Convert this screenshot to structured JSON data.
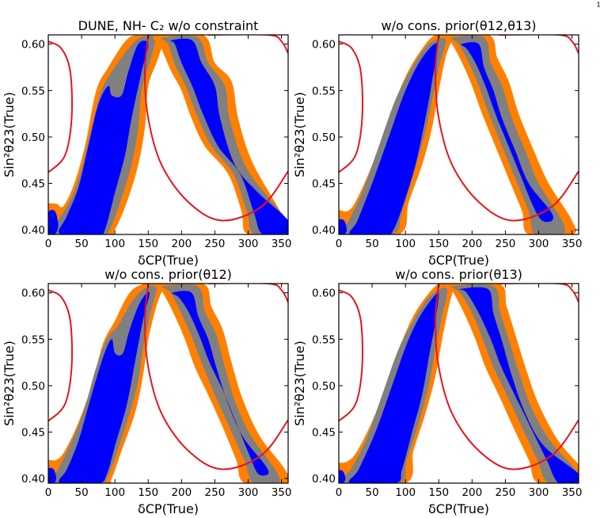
{
  "page_number": "1",
  "colors": {
    "orange": "#ff8000",
    "gray": "#808080",
    "blue": "#0000ff",
    "red": "#e8141b"
  },
  "chart_data": [
    {
      "type": "contour",
      "title": "DUNE, NH- C₂ w/o constraint",
      "xlabel": "δCP(True)",
      "ylabel": "Sin²θ23(True)",
      "xlim": [
        0,
        360
      ],
      "ylim": [
        0.395,
        0.61
      ],
      "x_ticks": [
        0,
        50,
        100,
        150,
        200,
        250,
        300,
        350
      ],
      "y_ticks": [
        0.4,
        0.45,
        0.5,
        0.55,
        0.6
      ],
      "x_tick_labels": [
        "0",
        "50",
        "100",
        "150",
        "200",
        "250",
        "300",
        "350"
      ],
      "y_tick_labels": [
        "0.40",
        "0.45",
        "0.50",
        "0.55",
        "0.60"
      ],
      "regions": {
        "left_band": {
          "x_at_bottom": [
            0,
            30
          ],
          "x_at_top": [
            125,
            155
          ],
          "bulge_x": 115,
          "bulge_y": 0.53
        },
        "right_band": {
          "x_at_top": [
            170,
            225
          ],
          "x_at_bottom": [
            315,
            360
          ],
          "bulge_x": 250,
          "bulge_y": 0.56
        }
      },
      "red_curve": [
        [
          0,
          0.603
        ],
        [
          20,
          0.595
        ],
        [
          33,
          0.57
        ],
        [
          35,
          0.52
        ],
        [
          25,
          0.48
        ],
        [
          0,
          0.462
        ],
        [
          150,
          0.61
        ],
        [
          145,
          0.57
        ],
        [
          150,
          0.52
        ],
        [
          170,
          0.47
        ],
        [
          210,
          0.43
        ],
        [
          260,
          0.41
        ],
        [
          320,
          0.425
        ],
        [
          360,
          0.463
        ],
        [
          240,
          0.61
        ],
        [
          330,
          0.61
        ],
        [
          350,
          0.603
        ],
        [
          360,
          0.59
        ]
      ]
    },
    {
      "type": "contour",
      "title": "w/o cons. prior(θ12,θ13)",
      "xlabel": "δCP(True)",
      "ylabel": "Sin²θ23(True)",
      "xlim": [
        0,
        360
      ],
      "ylim": [
        0.395,
        0.61
      ],
      "x_ticks": [
        0,
        50,
        100,
        150,
        200,
        250,
        300,
        350
      ],
      "y_ticks": [
        0.4,
        0.45,
        0.5,
        0.55,
        0.6
      ],
      "x_tick_labels": [
        "0",
        "50",
        "100",
        "150",
        "200",
        "250",
        "300",
        "350"
      ],
      "y_tick_labels": [
        "0.40",
        "0.45",
        "0.50",
        "0.55",
        "0.60"
      ],
      "regions": {
        "left_band": {
          "x_at_bottom": [
            0,
            30
          ],
          "x_at_top": [
            140,
            165
          ]
        },
        "right_band": {
          "x_at_top": [
            165,
            220
          ],
          "x_at_bottom": [
            300,
            340
          ]
        }
      },
      "red_curve": [
        [
          0,
          0.603
        ],
        [
          20,
          0.595
        ],
        [
          33,
          0.57
        ],
        [
          35,
          0.52
        ],
        [
          25,
          0.48
        ],
        [
          0,
          0.462
        ],
        [
          150,
          0.61
        ],
        [
          145,
          0.57
        ],
        [
          150,
          0.52
        ],
        [
          170,
          0.47
        ],
        [
          210,
          0.43
        ],
        [
          260,
          0.41
        ],
        [
          320,
          0.425
        ],
        [
          360,
          0.463
        ],
        [
          240,
          0.61
        ],
        [
          330,
          0.61
        ],
        [
          350,
          0.603
        ],
        [
          360,
          0.59
        ]
      ]
    },
    {
      "type": "contour",
      "title": "w/o cons. prior(θ12)",
      "xlabel": "δCP(True)",
      "ylabel": "Sin²θ23(True)",
      "xlim": [
        0,
        360
      ],
      "ylim": [
        0.395,
        0.61
      ],
      "x_ticks": [
        0,
        50,
        100,
        150,
        200,
        250,
        300,
        350
      ],
      "y_ticks": [
        0.4,
        0.45,
        0.5,
        0.55,
        0.6
      ],
      "x_tick_labels": [
        "0",
        "50",
        "100",
        "150",
        "200",
        "250",
        "300",
        "350"
      ],
      "y_tick_labels": [
        "0.40",
        "0.45",
        "0.50",
        "0.55",
        "0.60"
      ],
      "regions": {
        "left_band": {
          "x_at_bottom": [
            0,
            30
          ],
          "x_at_top": [
            130,
            160
          ],
          "bulge_x": 115,
          "bulge_y": 0.53
        },
        "right_band": {
          "x_at_top": [
            170,
            225
          ],
          "x_at_bottom": [
            310,
            350
          ]
        }
      },
      "red_curve": [
        [
          0,
          0.603
        ],
        [
          20,
          0.595
        ],
        [
          33,
          0.57
        ],
        [
          35,
          0.52
        ],
        [
          25,
          0.48
        ],
        [
          0,
          0.462
        ],
        [
          150,
          0.61
        ],
        [
          145,
          0.57
        ],
        [
          150,
          0.52
        ],
        [
          170,
          0.47
        ],
        [
          210,
          0.43
        ],
        [
          260,
          0.41
        ],
        [
          320,
          0.425
        ],
        [
          360,
          0.463
        ],
        [
          240,
          0.61
        ],
        [
          330,
          0.61
        ],
        [
          350,
          0.603
        ],
        [
          360,
          0.59
        ]
      ]
    },
    {
      "type": "contour",
      "title": "w/o cons. prior(θ13)",
      "xlabel": "δCP(True)",
      "ylabel": "Sin²θ23(True)",
      "xlim": [
        0,
        360
      ],
      "ylim": [
        0.395,
        0.61
      ],
      "x_ticks": [
        0,
        50,
        100,
        150,
        200,
        250,
        300,
        350
      ],
      "y_ticks": [
        0.4,
        0.45,
        0.5,
        0.55,
        0.6
      ],
      "x_tick_labels": [
        "0",
        "50",
        "100",
        "150",
        "200",
        "250",
        "300",
        "350"
      ],
      "y_tick_labels": [
        "0.40",
        "0.45",
        "0.50",
        "0.55",
        "0.60"
      ],
      "regions": {
        "left_band": {
          "x_at_bottom": [
            0,
            40
          ],
          "x_at_top": [
            135,
            165
          ]
        },
        "right_band": {
          "x_at_top": [
            165,
            235
          ],
          "x_at_bottom": [
            320,
            360
          ]
        }
      },
      "red_curve": [
        [
          0,
          0.603
        ],
        [
          20,
          0.595
        ],
        [
          33,
          0.57
        ],
        [
          35,
          0.52
        ],
        [
          25,
          0.48
        ],
        [
          0,
          0.462
        ],
        [
          150,
          0.61
        ],
        [
          145,
          0.57
        ],
        [
          150,
          0.52
        ],
        [
          170,
          0.47
        ],
        [
          210,
          0.43
        ],
        [
          260,
          0.41
        ],
        [
          320,
          0.425
        ],
        [
          360,
          0.463
        ],
        [
          240,
          0.61
        ],
        [
          330,
          0.61
        ],
        [
          350,
          0.603
        ],
        [
          360,
          0.59
        ]
      ]
    }
  ]
}
